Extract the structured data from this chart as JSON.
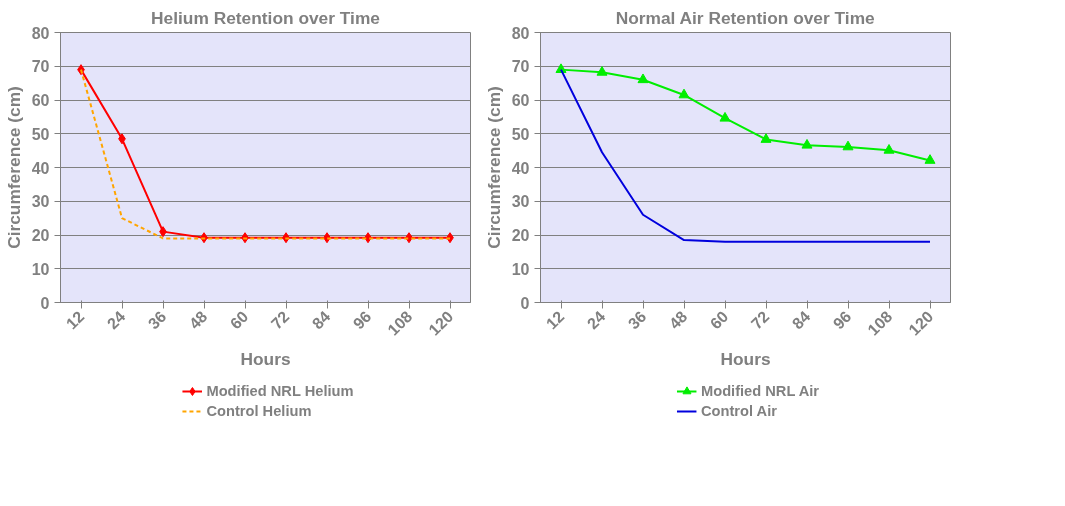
{
  "chart_data": [
    {
      "type": "line",
      "title": "Helium Retention over Time",
      "xlabel": "Hours",
      "ylabel": "Circumference (cm)",
      "categories": [
        "12",
        "24",
        "36",
        "48",
        "60",
        "72",
        "84",
        "96",
        "108",
        "120"
      ],
      "ylim": [
        0,
        80
      ],
      "yticks": [
        0,
        10,
        20,
        30,
        40,
        50,
        60,
        70,
        80
      ],
      "grid": "y",
      "legend": "bottom",
      "series": [
        {
          "name": "Modified NRL Helium",
          "color": "#ff0000",
          "marker": "diamond",
          "line_style": "solid",
          "values": [
            69,
            48.5,
            21,
            19.2,
            19.2,
            19.2,
            19.2,
            19.2,
            19.2,
            19.2
          ]
        },
        {
          "name": "Control Helium",
          "color": "#ffa500",
          "marker": "none",
          "line_style": "dashed",
          "values": [
            69,
            25,
            19,
            19,
            19,
            19,
            19,
            19,
            19,
            19
          ]
        }
      ]
    },
    {
      "type": "line",
      "title": "Normal Air Retention over Time",
      "xlabel": "Hours",
      "ylabel": "Circumference (cm)",
      "categories": [
        "12",
        "24",
        "36",
        "48",
        "60",
        "72",
        "84",
        "96",
        "108",
        "120"
      ],
      "ylim": [
        0,
        80
      ],
      "yticks": [
        0,
        10,
        20,
        30,
        40,
        50,
        60,
        70,
        80
      ],
      "grid": "y",
      "legend": "bottom",
      "series": [
        {
          "name": "Modified NRL Air",
          "color": "#00ee00",
          "marker": "triangle",
          "line_style": "solid",
          "values": [
            69,
            68.2,
            66,
            61.5,
            54.6,
            48.3,
            46.6,
            46.1,
            45.1,
            42.1
          ]
        },
        {
          "name": "Control Air",
          "color": "#0000dd",
          "marker": "none",
          "line_style": "solid",
          "values": [
            69,
            44.5,
            26,
            18.5,
            18,
            18,
            18,
            18,
            18,
            18
          ]
        }
      ]
    }
  ]
}
